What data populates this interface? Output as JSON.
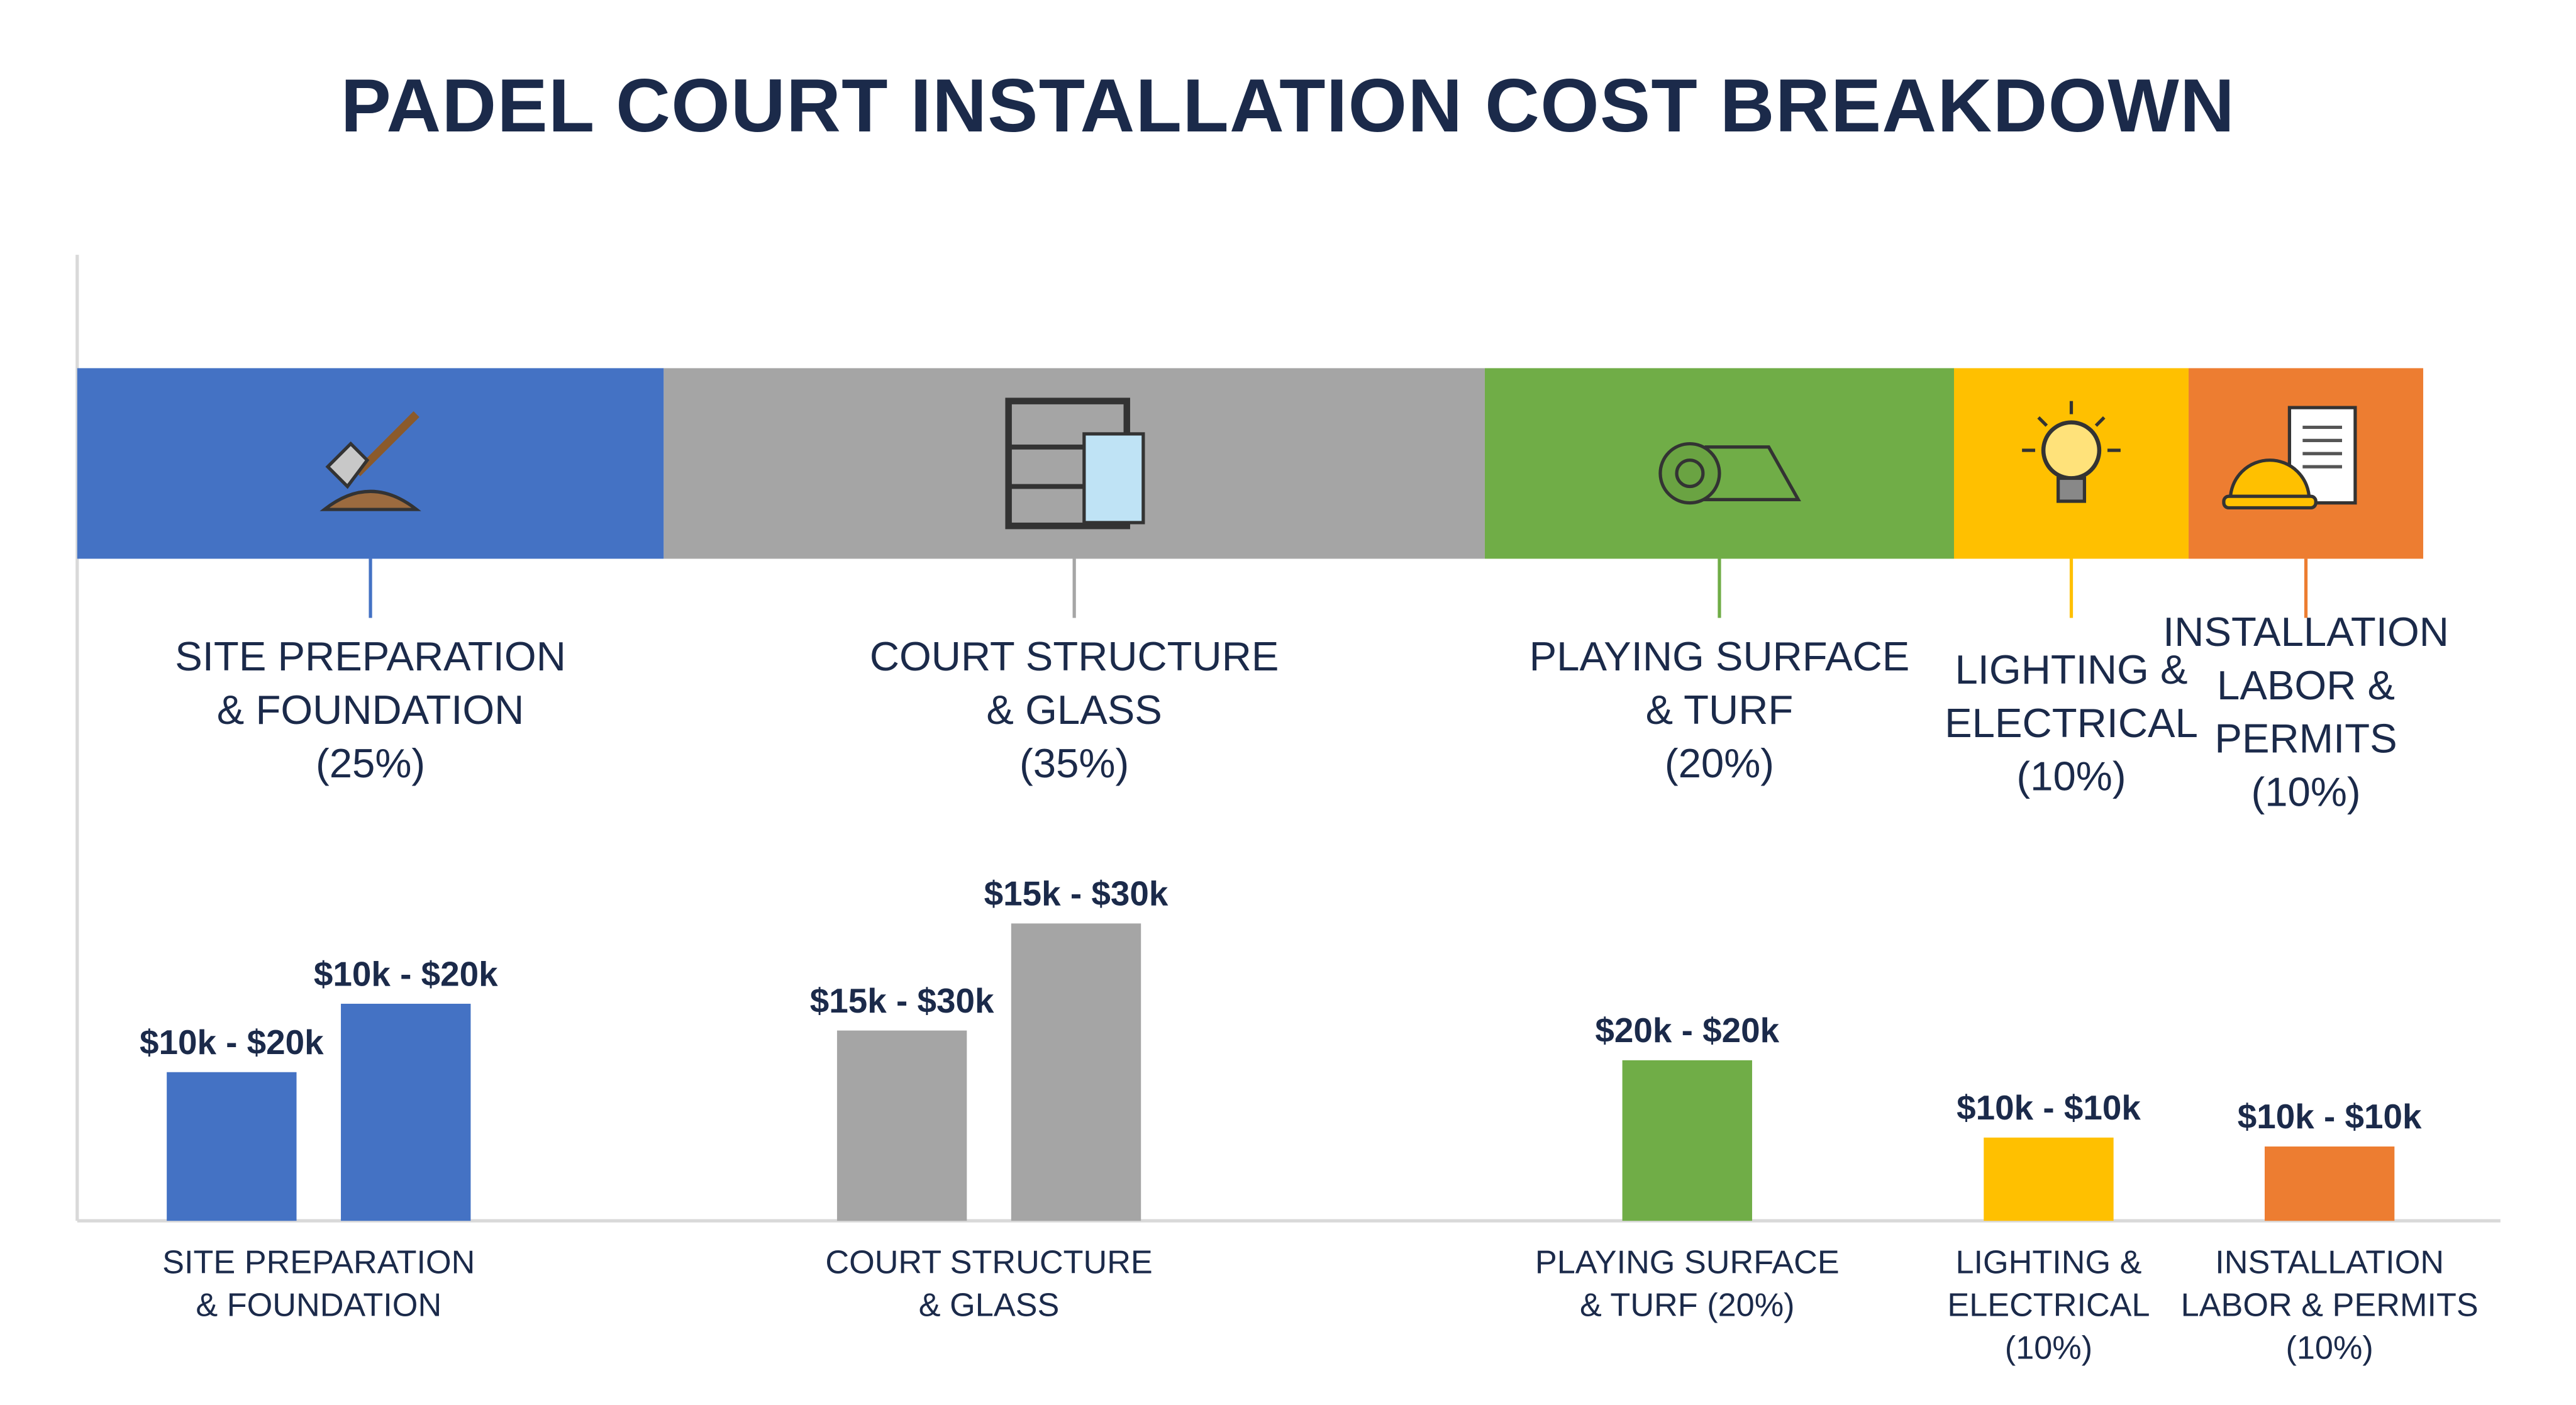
{
  "chart_data": {
    "type": "bar",
    "title": "PADEL COURT INSTALLATION COST BREAKDOWN",
    "stacked_bar": {
      "segments": [
        {
          "label_lines": [
            "SITE PREPARATION",
            "& FOUNDATION",
            "(25%)"
          ],
          "percent": 25,
          "color": "#4472c4",
          "icon": "shovel-icon"
        },
        {
          "label_lines": [
            "COURT STRUCTURE",
            "& GLASS",
            "(35%)"
          ],
          "percent": 35,
          "color": "#a5a5a5",
          "icon": "glass-frame-icon"
        },
        {
          "label_lines": [
            "PLAYING SURFACE",
            "& TURF",
            "(20%)"
          ],
          "percent": 20,
          "color": "#70ad47",
          "icon": "turf-roll-icon"
        },
        {
          "label_lines": [
            "LIGHTING &",
            "ELECTRICAL",
            "(10%)"
          ],
          "percent": 10,
          "color": "#ffc000",
          "icon": "lightbulb-icon"
        },
        {
          "label_lines": [
            "INSTALLATION",
            "LABOR &",
            "PERMITS",
            "(10%)"
          ],
          "percent": 10,
          "color": "#ed7d31",
          "icon": "hardhat-document-icon"
        }
      ]
    },
    "categories": [
      {
        "label_lines": [
          "SITE PREPARATION",
          "& FOUNDATION"
        ],
        "color": "#4472c4",
        "bars": [
          {
            "label": "$10k - $20k",
            "value": 50
          },
          {
            "label": "$10k - $20k",
            "value": 73
          }
        ]
      },
      {
        "label_lines": [
          "COURT STRUCTURE",
          "& GLASS"
        ],
        "color": "#a5a5a5",
        "bars": [
          {
            "label": "$15k - $30k",
            "value": 64
          },
          {
            "label": "$15k - $30k",
            "value": 100
          }
        ]
      },
      {
        "label_lines": [
          "PLAYING SURFACE",
          "& TURF (20%)"
        ],
        "color": "#70ad47",
        "bars": [
          {
            "label": "$20k - $20k",
            "value": 54
          }
        ]
      },
      {
        "label_lines": [
          "LIGHTING &",
          "ELECTRICAL",
          "(10%)"
        ],
        "color": "#ffc000",
        "bars": [
          {
            "label": "$10k - $10k",
            "value": 28
          }
        ]
      },
      {
        "label_lines": [
          "INSTALLATION",
          "LABOR & PERMITS",
          "(10%)"
        ],
        "color": "#ed7d31",
        "bars": [
          {
            "label": "$10k - $10k",
            "value": 25
          }
        ]
      }
    ],
    "xlabel": "",
    "ylabel": "",
    "ylim": [
      0,
      100
    ],
    "grid": false,
    "legend": "none"
  }
}
